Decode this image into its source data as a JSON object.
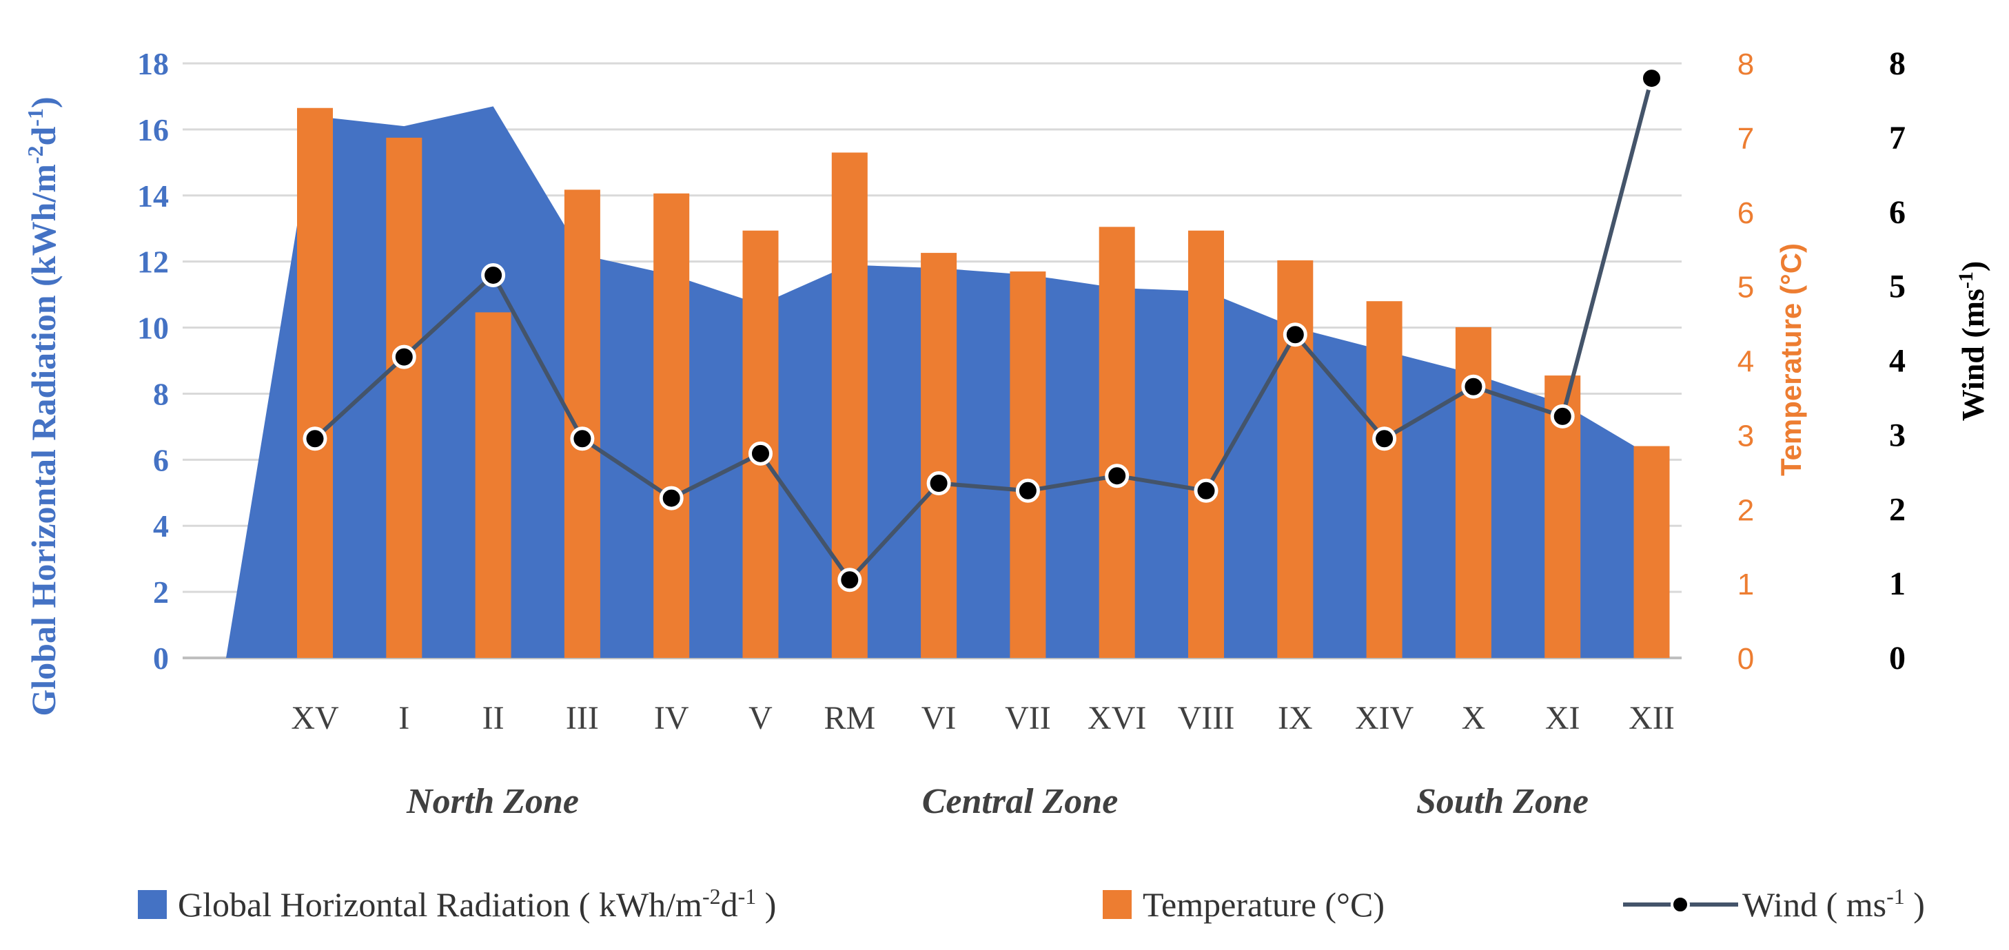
{
  "chart_data": {
    "type": "combo",
    "categories": [
      "XV",
      "I",
      "II",
      "III",
      "IV",
      "V",
      "RM",
      "VI",
      "VII",
      "XVI",
      "VIII",
      "IX",
      "XIV",
      "X",
      "XI",
      "XII"
    ],
    "zones": [
      "North Zone",
      "Central Zone",
      "South Zone"
    ],
    "series": [
      {
        "name": "Global Horizontal Radiation",
        "type": "area",
        "axis": "left",
        "color": "#4472C4",
        "values": [
          16.4,
          16.1,
          16.7,
          12.2,
          11.6,
          10.7,
          11.9,
          11.8,
          11.6,
          11.2,
          11.1,
          10.0,
          9.3,
          8.6,
          7.7,
          6.1
        ]
      },
      {
        "name": "Temperature",
        "type": "bar",
        "axis": "right1",
        "color": "#ED7D31",
        "values": [
          7.4,
          7.0,
          4.65,
          6.3,
          6.25,
          5.75,
          6.8,
          5.45,
          5.2,
          5.8,
          5.75,
          5.35,
          4.8,
          4.45,
          3.8,
          2.85
        ]
      },
      {
        "name": "Wind",
        "type": "line",
        "axis": "right2",
        "color": "#44546A",
        "values": [
          2.95,
          4.05,
          5.15,
          2.95,
          2.15,
          2.75,
          1.05,
          2.35,
          2.25,
          2.45,
          2.25,
          4.35,
          2.95,
          3.65,
          3.25,
          7.8
        ]
      }
    ],
    "axes": {
      "left": {
        "label": "Global Horizontal Radiation (kWh/m-2d-1)",
        "label_main": "Global Horizontal Radiation (kWh/m",
        "label_sup1": "-2",
        "label_mid": "d",
        "label_sup2": "-1",
        "label_end": ")",
        "ylim": [
          0,
          18
        ],
        "ticks": [
          "0",
          "2",
          "4",
          "6",
          "8",
          "10",
          "12",
          "14",
          "16",
          "18"
        ],
        "color": "#4472C4"
      },
      "right1": {
        "label": "Temperature (°C)",
        "ylim": [
          0,
          8
        ],
        "ticks": [
          "0",
          "1",
          "2",
          "3",
          "4",
          "5",
          "6",
          "7",
          "8"
        ],
        "color": "#ED7D31"
      },
      "right2": {
        "label": "Wind (ms-1)",
        "label_main": "Wind (ms",
        "label_sup": "-1",
        "label_end": ")",
        "ylim": [
          0,
          8
        ],
        "ticks": [
          "0",
          "1",
          "2",
          "3",
          "4",
          "5",
          "6",
          "7",
          "8"
        ],
        "color": "#000000"
      }
    },
    "legend": {
      "position": "bottom",
      "items": [
        {
          "key": "radiation",
          "main": "Global Horizontal Radiation ( kWh/m",
          "sup1": "-2",
          "mid": "d",
          "sup2": "-1",
          "end": " )"
        },
        {
          "key": "temperature",
          "main": "Temperature (°C)"
        },
        {
          "key": "wind",
          "main": "Wind ( ms",
          "sup1": "-1",
          "end": " )"
        }
      ]
    },
    "grid": true
  }
}
